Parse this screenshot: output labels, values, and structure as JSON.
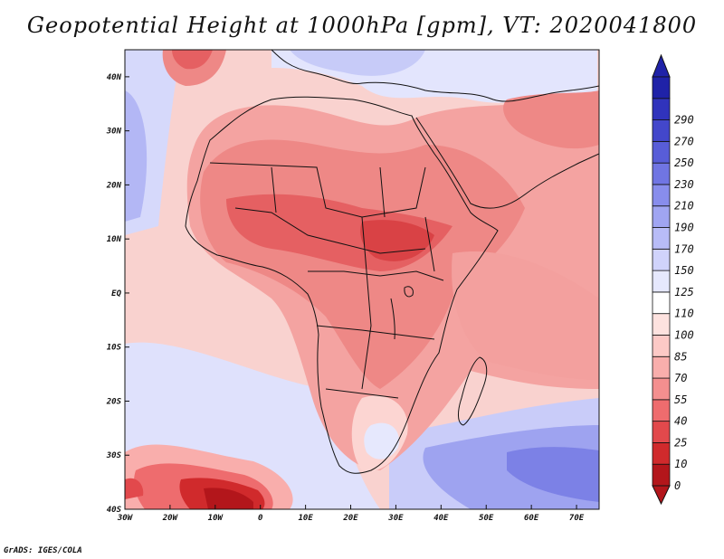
{
  "title": "Geopotential Height at 1000hPa [gpm], VT: 2020041800",
  "credit": "GrADS: IGES/COLA",
  "map": {
    "lon_range": [
      -30,
      75
    ],
    "lat_range": [
      -40,
      45
    ],
    "lon_ticks": [
      {
        "value": -30,
        "label": "30W"
      },
      {
        "value": -20,
        "label": "20W"
      },
      {
        "value": -10,
        "label": "10W"
      },
      {
        "value": 0,
        "label": "0"
      },
      {
        "value": 10,
        "label": "10E"
      },
      {
        "value": 20,
        "label": "20E"
      },
      {
        "value": 30,
        "label": "30E"
      },
      {
        "value": 40,
        "label": "40E"
      },
      {
        "value": 50,
        "label": "50E"
      },
      {
        "value": 60,
        "label": "60E"
      },
      {
        "value": 70,
        "label": "70E"
      }
    ],
    "lat_ticks": [
      {
        "value": 40,
        "label": "40N"
      },
      {
        "value": 30,
        "label": "30N"
      },
      {
        "value": 20,
        "label": "20N"
      },
      {
        "value": 10,
        "label": "10N"
      },
      {
        "value": 0,
        "label": "EQ"
      },
      {
        "value": -10,
        "label": "10S"
      },
      {
        "value": -20,
        "label": "20S"
      },
      {
        "value": -30,
        "label": "30S"
      },
      {
        "value": -40,
        "label": "40S"
      }
    ]
  },
  "colorbar": {
    "levels": [
      "0",
      "10",
      "25",
      "40",
      "55",
      "70",
      "85",
      "100",
      "110",
      "125",
      "150",
      "170",
      "190",
      "210",
      "230",
      "250",
      "270",
      "290"
    ],
    "colors": [
      "#b3161b",
      "#d02a2c",
      "#e2494c",
      "#ee6c6e",
      "#f48f8f",
      "#f9aeac",
      "#fcc9c6",
      "#fde2df",
      "#ffffff",
      "#e6e8fd",
      "#d0d3fb",
      "#b8bcf7",
      "#a0a5f2",
      "#888dec",
      "#7075e3",
      "#585dd8",
      "#4347cb",
      "#3033bc",
      "#1f22a8"
    ],
    "under_color": "#b3161b",
    "over_color": "#1f22a8"
  }
}
